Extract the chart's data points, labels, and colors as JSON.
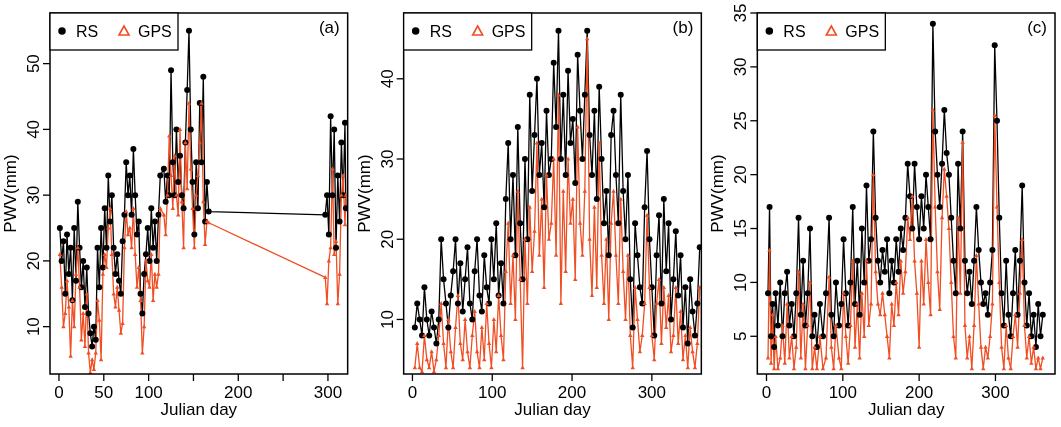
{
  "chart_data": [
    {
      "type": "line",
      "xlabel": "Julian day",
      "ylabel": "PWV(mm)",
      "annotations": [
        "(a)"
      ],
      "legend": "top left",
      "line_style": "solid",
      "grid": false,
      "xlim": [
        -10,
        322
      ],
      "ylim": [
        2.8,
        57.7
      ],
      "xticks": [
        0,
        50,
        100,
        {
          "value": 150,
          "label": null
        },
        200,
        {
          "value": 250,
          "label": null
        },
        300
      ],
      "yticks": [
        10,
        20,
        30,
        40,
        50
      ],
      "series": [
        {
          "name": "RS",
          "color": "#000000",
          "marker": "circle",
          "x": [
            1,
            3,
            5,
            7,
            9,
            11,
            13,
            15,
            17,
            19,
            21,
            23,
            25,
            27,
            29,
            31,
            33,
            35,
            37,
            39,
            41,
            43,
            45,
            47,
            49,
            51,
            53,
            55,
            57,
            59,
            61,
            63,
            65,
            67,
            69,
            71,
            73,
            75,
            77,
            79,
            81,
            83,
            85,
            87,
            89,
            91,
            93,
            95,
            97,
            99,
            101,
            103,
            105,
            107,
            109,
            111,
            113,
            117,
            119,
            121,
            123,
            125,
            127,
            129,
            131,
            133,
            135,
            137,
            139,
            141,
            143,
            145,
            147,
            149,
            151,
            153,
            155,
            157,
            159,
            161,
            163,
            165,
            167,
            297,
            299,
            301,
            303,
            305,
            307,
            309,
            311,
            313,
            315,
            317,
            319,
            320
          ],
          "values": [
            25,
            20,
            23,
            15,
            24,
            18,
            22,
            14,
            25,
            17,
            29,
            22,
            16,
            20,
            13,
            19,
            12,
            9,
            7,
            10,
            8,
            22,
            16,
            25,
            19,
            28,
            22,
            33,
            26,
            30,
            22,
            18,
            21,
            17,
            15,
            23,
            27,
            35,
            30,
            33,
            27,
            37,
            30,
            24,
            26,
            15,
            12,
            18,
            21,
            25,
            20,
            28,
            22,
            26,
            20,
            27,
            33,
            34,
            29,
            33,
            30,
            49,
            35,
            30,
            40,
            32,
            36,
            30,
            28,
            38,
            46,
            55,
            40,
            32,
            24,
            35,
            28,
            44,
            35,
            48,
            26,
            32,
            27.5,
            27,
            30,
            24,
            42,
            30,
            40,
            22,
            33,
            26,
            38,
            30,
            41,
            28
          ]
        },
        {
          "name": "GPS",
          "color": "#f04e23",
          "marker": "triangle",
          "x": [
            1,
            3,
            5,
            7,
            9,
            11,
            13,
            15,
            17,
            19,
            21,
            23,
            25,
            27,
            29,
            31,
            33,
            35,
            37,
            39,
            41,
            43,
            45,
            47,
            49,
            51,
            53,
            55,
            57,
            59,
            61,
            63,
            65,
            67,
            69,
            71,
            73,
            75,
            77,
            79,
            81,
            83,
            85,
            87,
            89,
            91,
            93,
            95,
            97,
            99,
            101,
            103,
            105,
            107,
            109,
            111,
            113,
            117,
            119,
            121,
            123,
            125,
            127,
            129,
            131,
            133,
            135,
            137,
            139,
            141,
            143,
            145,
            147,
            149,
            151,
            153,
            155,
            157,
            159,
            161,
            163,
            165,
            167,
            297,
            299,
            301,
            303,
            305,
            307,
            309,
            311,
            313,
            315,
            317,
            319,
            320
          ],
          "values": [
            21,
            16,
            10,
            12,
            17,
            13,
            5.5,
            14,
            10,
            18,
            22,
            16,
            8,
            12,
            7,
            15,
            6,
            3,
            5,
            3.5,
            6,
            14,
            11,
            5,
            18,
            21,
            19,
            25,
            28,
            21,
            15,
            13,
            16,
            12.5,
            9,
            10.5,
            22,
            27.5,
            24,
            25,
            22,
            28,
            21,
            16,
            19,
            14,
            6,
            10,
            20,
            17,
            16,
            21,
            14,
            18,
            16,
            18,
            28,
            27,
            24,
            30,
            39,
            33,
            28,
            36,
            30,
            27,
            40,
            29,
            22,
            38,
            31,
            44,
            34,
            28,
            22,
            30,
            33,
            38,
            44,
            29,
            22.5,
            26,
            25.8,
            17.5,
            13.5,
            20,
            22,
            34,
            21,
            23,
            13.5,
            18,
            30,
            33,
            25.5,
            30
          ]
        }
      ]
    },
    {
      "type": "line",
      "xlabel": "Julian day",
      "ylabel": "PWV(mm)",
      "annotations": [
        "(b)"
      ],
      "legend": "top left",
      "line_style": "solid",
      "grid": false,
      "xlim": [
        -11,
        362
      ],
      "ylim": [
        3.2,
        48.2
      ],
      "xticks": [
        0,
        100,
        200,
        300
      ],
      "yticks": [
        10,
        20,
        30,
        40
      ],
      "series": [
        {
          "name": "RS",
          "color": "#000000",
          "marker": "circle",
          "x": [
            3,
            6,
            9,
            12,
            15,
            18,
            21,
            24,
            27,
            30,
            33,
            36,
            39,
            42,
            45,
            48,
            51,
            54,
            57,
            60,
            63,
            66,
            69,
            72,
            75,
            78,
            81,
            84,
            87,
            90,
            93,
            96,
            99,
            102,
            105,
            108,
            111,
            114,
            117,
            120,
            123,
            126,
            129,
            132,
            135,
            138,
            141,
            144,
            147,
            150,
            153,
            156,
            159,
            162,
            165,
            168,
            171,
            174,
            177,
            180,
            183,
            186,
            189,
            192,
            195,
            198,
            201,
            204,
            207,
            210,
            213,
            216,
            219,
            222,
            225,
            228,
            231,
            234,
            237,
            240,
            243,
            246,
            249,
            252,
            255,
            258,
            261,
            264,
            267,
            270,
            273,
            276,
            279,
            282,
            285,
            288,
            291,
            294,
            297,
            300,
            303,
            306,
            309,
            312,
            315,
            318,
            321,
            324,
            327,
            330,
            333,
            336,
            339,
            342,
            345,
            348,
            351,
            354,
            357,
            360
          ],
          "values": [
            9,
            12,
            10,
            8,
            14,
            10,
            8,
            11,
            9,
            7,
            10,
            20,
            15,
            12,
            9,
            13,
            16,
            20,
            12,
            17,
            11,
            15,
            19,
            12,
            10,
            16,
            20,
            13,
            11,
            18,
            14,
            12,
            20,
            15,
            22,
            13,
            17,
            12,
            25,
            32,
            20,
            28,
            18,
            34,
            22,
            15,
            30,
            20,
            38,
            26,
            33,
            40,
            28,
            32,
            24,
            36,
            28,
            30,
            42,
            34,
            46,
            30,
            38,
            28,
            41,
            32,
            35,
            27,
            43,
            36,
            30,
            38,
            46,
            33,
            28,
            36,
            25,
            39,
            30,
            22,
            26,
            18,
            33,
            36,
            28,
            22,
            38,
            26,
            20,
            28,
            15,
            9,
            22,
            18,
            14,
            12,
            24,
            31,
            20,
            14,
            8,
            18,
            23,
            12,
            25,
            16,
            22,
            10,
            15,
            21,
            13,
            18,
            9,
            14,
            7,
            15,
            11,
            8,
            12,
            19
          ]
        },
        {
          "name": "GPS",
          "color": "#f04e23",
          "marker": "triangle",
          "x": [
            3,
            6,
            9,
            12,
            15,
            18,
            21,
            24,
            27,
            30,
            33,
            36,
            39,
            42,
            45,
            48,
            51,
            54,
            57,
            60,
            63,
            66,
            69,
            72,
            75,
            78,
            81,
            84,
            87,
            90,
            93,
            96,
            99,
            102,
            105,
            108,
            111,
            114,
            117,
            120,
            123,
            126,
            129,
            132,
            135,
            138,
            141,
            144,
            147,
            150,
            153,
            156,
            159,
            162,
            165,
            168,
            171,
            174,
            177,
            180,
            183,
            186,
            189,
            192,
            195,
            198,
            201,
            204,
            207,
            210,
            213,
            216,
            219,
            222,
            225,
            228,
            231,
            234,
            237,
            240,
            243,
            246,
            249,
            252,
            255,
            258,
            261,
            264,
            267,
            270,
            273,
            276,
            279,
            282,
            285,
            288,
            291,
            294,
            297,
            300,
            303,
            306,
            309,
            312,
            315,
            318,
            321,
            324,
            327,
            330,
            333,
            336,
            339,
            342,
            345,
            348,
            351,
            354,
            357,
            360
          ],
          "values": [
            4,
            7,
            4,
            3.5,
            8,
            5,
            4,
            6,
            3.5,
            5,
            8,
            12,
            7,
            4,
            10,
            6,
            4,
            9,
            13,
            7,
            5,
            10,
            6,
            4,
            8,
            11,
            6,
            4,
            9,
            5,
            12,
            7,
            4,
            10,
            6,
            13,
            8,
            5,
            16,
            22,
            12,
            18,
            10,
            26,
            15,
            4,
            20,
            12,
            24,
            16,
            21,
            32,
            18,
            25,
            14,
            28,
            20,
            22,
            30,
            18,
            38,
            12,
            26,
            16,
            30,
            22,
            25,
            15,
            34,
            22,
            18,
            26,
            45,
            20,
            13,
            24,
            14,
            32,
            18,
            12,
            20,
            10,
            22,
            26,
            18,
            12,
            25,
            16,
            10,
            18,
            8,
            4,
            14,
            10,
            6,
            8,
            12,
            23,
            14,
            8,
            5,
            12,
            15,
            7,
            14,
            9,
            13,
            6,
            8,
            14,
            7,
            11,
            5,
            8,
            4,
            9,
            6,
            4,
            7,
            14
          ]
        }
      ]
    },
    {
      "type": "line",
      "xlabel": "Julian day",
      "ylabel": "PWV(mm)",
      "annotations": [
        "(c)"
      ],
      "legend": "top left",
      "line_style": "solid",
      "grid": false,
      "xlim": [
        -12,
        378
      ],
      "ylim": [
        1.5,
        35
      ],
      "xticks": [
        0,
        100,
        200,
        300
      ],
      "yticks": [
        5,
        10,
        15,
        20,
        25,
        30,
        35
      ],
      "series": [
        {
          "name": "RS",
          "color": "#000000",
          "marker": "circle",
          "x": [
            2,
            4,
            6,
            8,
            10,
            12,
            15,
            18,
            21,
            24,
            27,
            30,
            33,
            36,
            39,
            42,
            45,
            48,
            51,
            54,
            57,
            60,
            63,
            66,
            70,
            74,
            78,
            82,
            85,
            88,
            91,
            95,
            98,
            101,
            104,
            107,
            110,
            113,
            116,
            119,
            122,
            125,
            128,
            131,
            134,
            137,
            140,
            143,
            146,
            149,
            152,
            155,
            158,
            161,
            164,
            167,
            170,
            173,
            176,
            179,
            182,
            185,
            188,
            191,
            194,
            197,
            200,
            203,
            206,
            209,
            212,
            215,
            218,
            221,
            224,
            227,
            230,
            233,
            236,
            239,
            242,
            245,
            248,
            251,
            254,
            257,
            260,
            263,
            266,
            269,
            272,
            275,
            278,
            281,
            284,
            287,
            290,
            293,
            296,
            299,
            302,
            305,
            308,
            311,
            314,
            317,
            320,
            323,
            326,
            329,
            332,
            335,
            338,
            341,
            344,
            347,
            350,
            353,
            356,
            359,
            362
          ],
          "values": [
            9,
            17,
            5,
            8,
            4,
            9,
            6,
            10,
            5,
            9,
            11,
            6,
            8,
            5,
            9,
            16,
            7,
            12,
            6,
            9,
            15,
            5,
            7,
            4,
            8,
            5,
            9,
            16,
            7,
            5,
            10,
            6,
            8,
            14,
            9,
            6,
            10,
            17,
            8,
            12,
            7,
            15,
            10,
            19,
            12,
            14,
            24,
            16,
            12,
            10,
            13,
            11,
            14,
            9,
            12,
            10,
            14,
            11,
            15,
            13,
            16,
            21,
            18,
            15,
            21,
            17,
            14,
            18,
            15,
            20,
            17,
            14,
            34,
            24,
            20,
            17,
            21,
            26,
            22,
            20,
            16,
            12,
            9,
            21,
            15,
            24,
            12,
            9,
            11,
            8,
            12,
            17,
            13,
            10,
            8,
            9,
            7,
            10,
            13,
            32,
            25,
            16,
            9,
            6,
            12,
            7,
            5,
            9,
            13,
            7,
            12,
            19,
            10,
            6,
            9,
            5,
            7,
            4,
            8,
            5,
            7
          ]
        },
        {
          "name": "GPS",
          "color": "#f04e23",
          "marker": "triangle",
          "x": [
            2,
            4,
            6,
            8,
            10,
            12,
            15,
            18,
            21,
            24,
            27,
            30,
            33,
            36,
            39,
            42,
            45,
            48,
            51,
            54,
            57,
            60,
            63,
            66,
            70,
            74,
            78,
            82,
            85,
            88,
            91,
            95,
            98,
            101,
            104,
            107,
            110,
            113,
            116,
            119,
            122,
            125,
            128,
            131,
            134,
            137,
            140,
            143,
            146,
            149,
            152,
            155,
            158,
            161,
            164,
            167,
            170,
            173,
            176,
            179,
            182,
            185,
            188,
            191,
            194,
            197,
            200,
            203,
            206,
            209,
            212,
            215,
            218,
            221,
            224,
            227,
            230,
            233,
            236,
            239,
            242,
            245,
            248,
            251,
            254,
            257,
            260,
            263,
            266,
            269,
            272,
            275,
            278,
            281,
            284,
            287,
            290,
            293,
            296,
            299,
            302,
            305,
            308,
            311,
            314,
            317,
            320,
            323,
            326,
            329,
            332,
            335,
            338,
            341,
            344,
            347,
            350,
            353,
            356,
            359,
            362
          ],
          "values": [
            3,
            13,
            2.5,
            7,
            2,
            5,
            2,
            3,
            6,
            2.5,
            8,
            3,
            5,
            2,
            4,
            11,
            3,
            8,
            2,
            6,
            10,
            2,
            4,
            2,
            5,
            2,
            3,
            10.5,
            4,
            2,
            6,
            3,
            2,
            9,
            5,
            2.5,
            6,
            12,
            4,
            8,
            3,
            9,
            5,
            12,
            6,
            8,
            20,
            11,
            8,
            7,
            9,
            7,
            5,
            3,
            8,
            6,
            10,
            7,
            12,
            9,
            11,
            16,
            14,
            18,
            12,
            9,
            4,
            12,
            8,
            14,
            10,
            7,
            26,
            17,
            11,
            7.5,
            16,
            20.5,
            18,
            15,
            10,
            5,
            3,
            16,
            9,
            23,
            6,
            3,
            5,
            2,
            6,
            12.5,
            8,
            4,
            2,
            4,
            3,
            5,
            8,
            25.5,
            17,
            10,
            4,
            2,
            6,
            3,
            2,
            5,
            7,
            4,
            9,
            14,
            6,
            3,
            5,
            2.5,
            4,
            2,
            3,
            2,
            3
          ]
        }
      ]
    }
  ]
}
